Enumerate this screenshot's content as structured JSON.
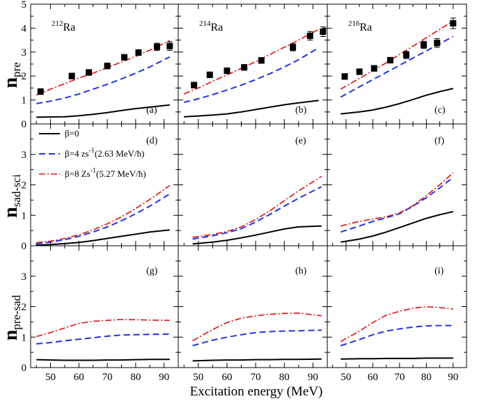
{
  "chart_data": {
    "type": "line",
    "xlabel": "Excitation energy (MeV)",
    "xlim": [
      43,
      95
    ],
    "x_ticks": [
      50,
      60,
      70,
      80,
      90
    ],
    "nuclei": [
      {
        "mass": "212",
        "element": "Ra"
      },
      {
        "mass": "214",
        "element": "Ra"
      },
      {
        "mass": "216",
        "element": "Ra"
      }
    ],
    "legend": [
      {
        "label": "β=0",
        "color": "#000000",
        "style": "solid"
      },
      {
        "label": "β=4 zs",
        "sup": "-1",
        "extra": "(2.63 MeV/ħ)",
        "color": "#2233dd",
        "style": "dashed"
      },
      {
        "label": "β=8 Zs",
        "sup": "-1",
        "extra": "(5.27 MeV/ħ)",
        "color": "#dd1111",
        "style": "dashdot"
      }
    ],
    "rows": [
      {
        "ylabel": "n",
        "ysub": "pre",
        "ylim": [
          0,
          5
        ],
        "y_ticks": [
          0,
          1,
          2,
          3,
          4,
          5
        ],
        "panels": [
          {
            "tag": "(a)",
            "series": [
              {
                "name": "β=0",
                "x": [
                  45,
                  50,
                  55,
                  60,
                  65,
                  70,
                  75,
                  80,
                  85,
                  92
                ],
                "y": [
                  0.28,
                  0.29,
                  0.3,
                  0.34,
                  0.4,
                  0.47,
                  0.56,
                  0.64,
                  0.7,
                  0.79
                ]
              },
              {
                "name": "β=4",
                "x": [
                  45,
                  50,
                  55,
                  60,
                  65,
                  70,
                  75,
                  80,
                  85,
                  92
                ],
                "y": [
                  0.85,
                  0.95,
                  1.08,
                  1.25,
                  1.45,
                  1.65,
                  1.88,
                  2.12,
                  2.38,
                  2.8
                ]
              },
              {
                "name": "β=8",
                "x": [
                  45,
                  50,
                  55,
                  60,
                  65,
                  70,
                  75,
                  80,
                  85,
                  92
                ],
                "y": [
                  1.2,
                  1.45,
                  1.68,
                  1.92,
                  2.12,
                  2.35,
                  2.58,
                  2.82,
                  3.08,
                  3.48
                ]
              }
            ],
            "exp": {
              "x": [
                46.5,
                57.5,
                63.5,
                70,
                76,
                81,
                87.5,
                92
              ],
              "y": [
                1.35,
                2.0,
                2.15,
                2.42,
                2.78,
                2.98,
                3.22,
                3.25
              ],
              "err": [
                0.12,
                0.12,
                0.12,
                0.12,
                0.12,
                0.12,
                0.15,
                0.18
              ]
            }
          },
          {
            "tag": "(b)",
            "series": [
              {
                "name": "β=0",
                "x": [
                  45,
                  50,
                  55,
                  60,
                  65,
                  70,
                  75,
                  80,
                  85,
                  92
                ],
                "y": [
                  0.3,
                  0.33,
                  0.37,
                  0.42,
                  0.5,
                  0.6,
                  0.7,
                  0.8,
                  0.88,
                  0.98
                ]
              },
              {
                "name": "β=4",
                "x": [
                  45,
                  50,
                  55,
                  60,
                  65,
                  70,
                  75,
                  80,
                  85,
                  92
                ],
                "y": [
                  0.9,
                  1.05,
                  1.22,
                  1.42,
                  1.62,
                  1.85,
                  2.1,
                  2.38,
                  2.68,
                  3.18
                ]
              },
              {
                "name": "β=8",
                "x": [
                  45,
                  50,
                  55,
                  60,
                  65,
                  70,
                  75,
                  80,
                  85,
                  92
                ],
                "y": [
                  1.25,
                  1.5,
                  1.78,
                  2.05,
                  2.32,
                  2.6,
                  2.9,
                  3.2,
                  3.5,
                  3.95
                ]
              }
            ],
            "exp": {
              "x": [
                48.5,
                54,
                60,
                66,
                72,
                83,
                89,
                93.5
              ],
              "y": [
                1.62,
                2.05,
                2.22,
                2.36,
                2.65,
                3.2,
                3.68,
                3.85
              ],
              "err": [
                0.12,
                0.12,
                0.12,
                0.12,
                0.12,
                0.15,
                0.18,
                0.2
              ]
            }
          },
          {
            "tag": "(c)",
            "series": [
              {
                "name": "β=0",
                "x": [
                  48,
                  55,
                  60,
                  65,
                  70,
                  75,
                  80,
                  85,
                  90
                ],
                "y": [
                  0.42,
                  0.5,
                  0.58,
                  0.7,
                  0.85,
                  1.02,
                  1.2,
                  1.35,
                  1.48
                ]
              },
              {
                "name": "β=4",
                "x": [
                  48,
                  55,
                  60,
                  65,
                  70,
                  75,
                  80,
                  85,
                  90
                ],
                "y": [
                  1.12,
                  1.55,
                  1.85,
                  2.15,
                  2.45,
                  2.75,
                  3.05,
                  3.35,
                  3.65
                ]
              },
              {
                "name": "β=8",
                "x": [
                  48,
                  55,
                  60,
                  65,
                  70,
                  75,
                  80,
                  85,
                  90
                ],
                "y": [
                  1.45,
                  1.9,
                  2.22,
                  2.55,
                  2.9,
                  3.25,
                  3.6,
                  3.95,
                  4.3
                ]
              }
            ],
            "exp": {
              "x": [
                49.5,
                55,
                60.5,
                66.5,
                72.5,
                79,
                84,
                90
              ],
              "y": [
                1.98,
                2.18,
                2.32,
                2.66,
                2.88,
                3.3,
                3.38,
                4.2
              ],
              "err": [
                0.12,
                0.12,
                0.12,
                0.12,
                0.15,
                0.15,
                0.18,
                0.22
              ]
            }
          }
        ]
      },
      {
        "ylabel": "n",
        "ysub": "sad-sci",
        "ylim": [
          0,
          4
        ],
        "y_ticks": [
          0,
          1,
          2,
          3
        ],
        "panels": [
          {
            "tag": "(d)",
            "series": [
              {
                "name": "β=0",
                "x": [
                  45,
                  50,
                  55,
                  60,
                  65,
                  70,
                  75,
                  80,
                  85,
                  92
                ],
                "y": [
                  0.02,
                  0.04,
                  0.07,
                  0.11,
                  0.17,
                  0.24,
                  0.31,
                  0.38,
                  0.45,
                  0.52
                ]
              },
              {
                "name": "β=4",
                "x": [
                  45,
                  50,
                  55,
                  60,
                  65,
                  70,
                  75,
                  80,
                  85,
                  92
                ],
                "y": [
                  0.07,
                  0.12,
                  0.2,
                  0.31,
                  0.45,
                  0.62,
                  0.82,
                  1.05,
                  1.3,
                  1.7
                ]
              },
              {
                "name": "β=8",
                "x": [
                  45,
                  50,
                  55,
                  60,
                  65,
                  70,
                  75,
                  80,
                  85,
                  92
                ],
                "y": [
                  0.1,
                  0.15,
                  0.24,
                  0.36,
                  0.52,
                  0.72,
                  0.95,
                  1.22,
                  1.52,
                  1.98
                ]
              }
            ]
          },
          {
            "tag": "(e)",
            "series": [
              {
                "name": "β=0",
                "x": [
                  48,
                  55,
                  60,
                  65,
                  70,
                  75,
                  80,
                  85,
                  93
                ],
                "y": [
                  0.06,
                  0.12,
                  0.18,
                  0.26,
                  0.35,
                  0.45,
                  0.55,
                  0.62,
                  0.65
                ]
              },
              {
                "name": "β=4",
                "x": [
                  48,
                  55,
                  60,
                  65,
                  70,
                  75,
                  80,
                  85,
                  93
                ],
                "y": [
                  0.22,
                  0.33,
                  0.43,
                  0.56,
                  0.78,
                  1.03,
                  1.3,
                  1.56,
                  1.94
                ]
              },
              {
                "name": "β=8",
                "x": [
                  48,
                  55,
                  60,
                  65,
                  70,
                  75,
                  80,
                  85,
                  93
                ],
                "y": [
                  0.28,
                  0.37,
                  0.47,
                  0.62,
                  0.86,
                  1.15,
                  1.48,
                  1.8,
                  2.28
                ]
              }
            ]
          },
          {
            "tag": "(f)",
            "series": [
              {
                "name": "β=0",
                "x": [
                  48,
                  55,
                  60,
                  65,
                  70,
                  75,
                  80,
                  85,
                  90
                ],
                "y": [
                  0.12,
                  0.22,
                  0.32,
                  0.45,
                  0.6,
                  0.75,
                  0.9,
                  1.02,
                  1.12
                ]
              },
              {
                "name": "β=4",
                "x": [
                  48,
                  55,
                  60,
                  65,
                  70,
                  75,
                  80,
                  85,
                  90
                ],
                "y": [
                  0.45,
                  0.65,
                  0.8,
                  0.92,
                  1.05,
                  1.3,
                  1.58,
                  1.9,
                  2.25
                ]
              },
              {
                "name": "β=8",
                "x": [
                  48,
                  55,
                  60,
                  65,
                  70,
                  75,
                  80,
                  85,
                  90
                ],
                "y": [
                  0.65,
                  0.8,
                  0.88,
                  0.95,
                  1.08,
                  1.32,
                  1.65,
                  2.0,
                  2.4
                ]
              }
            ]
          }
        ]
      },
      {
        "ylabel": "n",
        "ysub": "pre-sad",
        "ylim": [
          0,
          4
        ],
        "y_ticks": [
          0,
          1,
          2,
          3
        ],
        "panels": [
          {
            "tag": "(g)",
            "series": [
              {
                "name": "β=0",
                "x": [
                  45,
                  50,
                  55,
                  60,
                  65,
                  70,
                  75,
                  80,
                  85,
                  92
                ],
                "y": [
                  0.26,
                  0.25,
                  0.24,
                  0.24,
                  0.24,
                  0.25,
                  0.25,
                  0.26,
                  0.27,
                  0.27
                ]
              },
              {
                "name": "β=4",
                "x": [
                  45,
                  50,
                  55,
                  60,
                  65,
                  70,
                  75,
                  80,
                  85,
                  92
                ],
                "y": [
                  0.78,
                  0.82,
                  0.88,
                  0.93,
                  0.98,
                  1.03,
                  1.07,
                  1.08,
                  1.09,
                  1.1
                ]
              },
              {
                "name": "β=8",
                "x": [
                  45,
                  50,
                  55,
                  60,
                  65,
                  70,
                  75,
                  80,
                  85,
                  92
                ],
                "y": [
                  1.02,
                  1.15,
                  1.3,
                  1.45,
                  1.52,
                  1.55,
                  1.58,
                  1.57,
                  1.56,
                  1.55
                ]
              }
            ]
          },
          {
            "tag": "(h)",
            "series": [
              {
                "name": "β=0",
                "x": [
                  48,
                  55,
                  60,
                  65,
                  70,
                  75,
                  80,
                  85,
                  93
                ],
                "y": [
                  0.22,
                  0.24,
                  0.25,
                  0.25,
                  0.26,
                  0.26,
                  0.27,
                  0.27,
                  0.28
                ]
              },
              {
                "name": "β=4",
                "x": [
                  48,
                  55,
                  60,
                  65,
                  70,
                  75,
                  80,
                  85,
                  93
                ],
                "y": [
                  0.72,
                  0.9,
                  1.0,
                  1.08,
                  1.15,
                  1.18,
                  1.2,
                  1.21,
                  1.23
                ]
              },
              {
                "name": "β=8",
                "x": [
                  48,
                  55,
                  60,
                  65,
                  70,
                  75,
                  80,
                  85,
                  93
                ],
                "y": [
                  0.88,
                  1.25,
                  1.48,
                  1.62,
                  1.7,
                  1.75,
                  1.78,
                  1.79,
                  1.7
                ]
              }
            ]
          },
          {
            "tag": "(i)",
            "series": [
              {
                "name": "β=0",
                "x": [
                  48,
                  55,
                  60,
                  65,
                  70,
                  75,
                  80,
                  85,
                  90
                ],
                "y": [
                  0.28,
                  0.29,
                  0.29,
                  0.3,
                  0.3,
                  0.3,
                  0.31,
                  0.31,
                  0.31
                ]
              },
              {
                "name": "β=4",
                "x": [
                  48,
                  55,
                  60,
                  65,
                  70,
                  75,
                  80,
                  85,
                  90
                ],
                "y": [
                  0.72,
                  0.92,
                  1.08,
                  1.2,
                  1.27,
                  1.33,
                  1.37,
                  1.38,
                  1.38
                ]
              },
              {
                "name": "β=8",
                "x": [
                  48,
                  55,
                  60,
                  65,
                  70,
                  75,
                  80,
                  85,
                  90
                ],
                "y": [
                  0.85,
                  1.2,
                  1.48,
                  1.72,
                  1.85,
                  1.95,
                  2.0,
                  1.97,
                  1.92
                ]
              }
            ]
          }
        ]
      }
    ]
  }
}
